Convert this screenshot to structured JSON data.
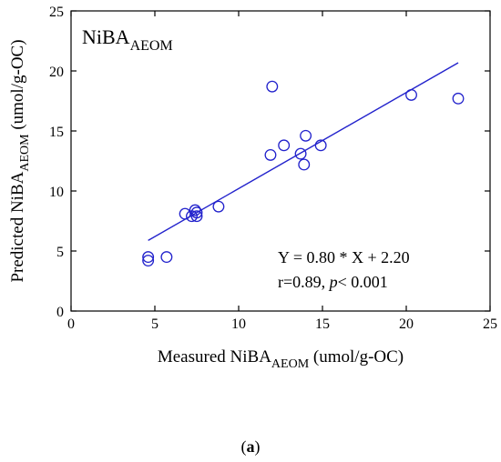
{
  "chart_data": {
    "type": "scatter",
    "panel_label": {
      "main": "NiBA",
      "sub": "AEOM"
    },
    "xlabel": {
      "prefix": "Measured NiBA",
      "sub": "AEOM",
      "suffix": " (umol/g-OC)"
    },
    "ylabel": {
      "prefix": "Predicted NiBA",
      "sub": "AEOM",
      "suffix": " (umol/g-OC)"
    },
    "xlim": [
      0,
      25
    ],
    "ylim": [
      0,
      25
    ],
    "xticks": [
      "0",
      "5",
      "10",
      "15",
      "20",
      "25"
    ],
    "yticks": [
      "0",
      "5",
      "10",
      "15",
      "20",
      "25"
    ],
    "grid": false,
    "marker_color": "#2222cc",
    "line_color": "#2222cc",
    "series": [
      {
        "x": [
          4.6,
          4.6,
          5.7,
          6.8,
          7.2,
          7.4,
          7.5,
          7.5,
          8.8,
          11.9,
          12.0,
          12.7,
          13.7,
          13.9,
          14.0,
          14.9,
          20.3,
          23.1
        ],
        "y": [
          4.5,
          4.2,
          4.5,
          8.1,
          7.9,
          8.4,
          7.9,
          8.2,
          8.7,
          13.0,
          18.7,
          13.8,
          13.1,
          12.2,
          14.6,
          13.8,
          18.0,
          17.7
        ]
      }
    ],
    "fit_line": {
      "x": [
        4.6,
        23.1
      ],
      "slope": 0.8,
      "intercept": 2.2
    },
    "equation": "Y = 0.80 * X + 2.20",
    "stats": {
      "prefix": "r=0.89, ",
      "italic": "p",
      "suffix": "< 0.001"
    }
  },
  "caption": {
    "open": "(",
    "bold": "a",
    "close": ")"
  }
}
